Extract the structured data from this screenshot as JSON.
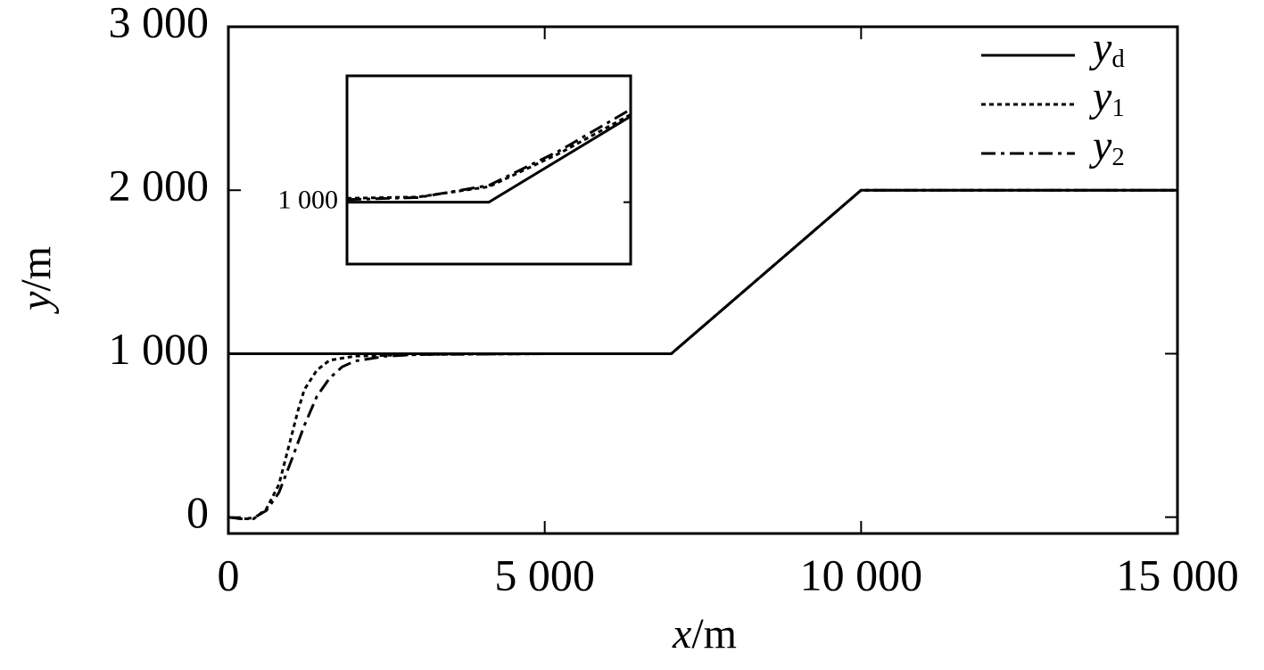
{
  "chart_data": [
    {
      "type": "line",
      "xlabel": "x/m",
      "ylabel": "y/m",
      "xlim": [
        0,
        15000
      ],
      "ylim": [
        -100,
        3000
      ],
      "xticks": [
        0,
        {
          "value": 5000,
          "label": "5 000"
        },
        {
          "value": 10000,
          "label": "10 000"
        },
        {
          "value": 15000,
          "label": "15 000"
        }
      ],
      "yticks": [
        0,
        {
          "value": 1000,
          "label": "1 000"
        },
        {
          "value": 2000,
          "label": "2 000"
        },
        {
          "value": 3000,
          "label": "3 000"
        }
      ],
      "legend": "upper right",
      "series": [
        {
          "name": "yd",
          "color": "#000000",
          "style": "solid",
          "x": [
            0,
            7000,
            10000,
            15000
          ],
          "values": [
            1000,
            1000,
            2000,
            2000
          ]
        },
        {
          "name": "y1",
          "color": "#000000",
          "style": "dotted",
          "x": [
            0,
            200,
            400,
            600,
            800,
            900,
            1000,
            1100,
            1200,
            1400,
            1600,
            2000,
            3000,
            5000,
            7000,
            10000,
            15000
          ],
          "values": [
            0,
            -10,
            -10,
            50,
            200,
            350,
            500,
            650,
            780,
            900,
            960,
            985,
            995,
            1000,
            1000,
            2000,
            2000
          ]
        },
        {
          "name": "y2",
          "color": "#000000",
          "style": "dashdot",
          "x": [
            0,
            200,
            400,
            600,
            800,
            1000,
            1200,
            1400,
            1600,
            1800,
            2000,
            2500,
            3000,
            5000,
            7000,
            10000,
            15000
          ],
          "values": [
            0,
            -10,
            -5,
            40,
            150,
            350,
            560,
            740,
            850,
            920,
            955,
            985,
            995,
            1000,
            1000,
            2000,
            2000
          ]
        }
      ]
    },
    {
      "type": "line",
      "xlim": [
        6000,
        8000
      ],
      "ylim": [
        760,
        1490
      ],
      "yticks": [
        {
          "value": 1000,
          "label": "1 000"
        }
      ],
      "series": [
        {
          "color": "#000000",
          "style": "solid",
          "x": [
            6000,
            7000,
            8000
          ],
          "values": [
            1000,
            1000,
            1333
          ]
        },
        {
          "color": "#000000",
          "style": "dotted",
          "x": [
            6000,
            6500,
            7000,
            7500,
            8000
          ],
          "values": [
            1015,
            1020,
            1060,
            1190,
            1340
          ]
        },
        {
          "color": "#000000",
          "style": "dashdot",
          "x": [
            6000,
            6500,
            7000,
            7500,
            8000
          ],
          "values": [
            1010,
            1018,
            1065,
            1200,
            1360
          ]
        }
      ]
    }
  ]
}
